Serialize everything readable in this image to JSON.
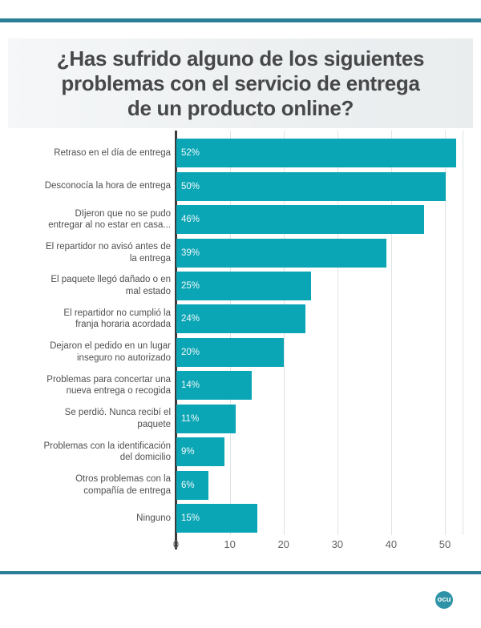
{
  "header": {
    "title_lines": [
      "¿Has sufrido alguno de los siguientes",
      "problemas con el servicio de entrega",
      "de un producto online?"
    ]
  },
  "chart_data": {
    "type": "bar",
    "orientation": "horizontal",
    "title": "¿Has sufrido alguno de los siguientes problemas con el servicio de entrega de un producto online?",
    "categories": [
      "Retraso en el día de entrega",
      "Desconocía la hora de entrega",
      "DIjeron que no se pudo\nentregar al no estar en casa...",
      "El repartidor no avisó antes de\nla entrega",
      "El paquete llegó dañado o en\nmal estado",
      "El repartidor no cumplió la\nfranja horaria acordada",
      "Dejaron el pedido en un lugar\ninseguro no autorizado",
      "Problemas para concertar una\nnueva entrega o recogida",
      "Se perdió. Nunca recibí el\npaquete",
      "Problemas con la identificación\ndel domicilio",
      "Otros problemas con la\ncompañía de entrega",
      "Ninguno"
    ],
    "values": [
      52,
      50,
      46,
      39,
      25,
      24,
      20,
      14,
      11,
      9,
      6,
      15
    ],
    "value_labels": [
      "52%",
      "50%",
      "46%",
      "39%",
      "25%",
      "24%",
      "20%",
      "14%",
      "11%",
      "9%",
      "6%",
      "15%"
    ],
    "unit": "%",
    "xticks": [
      0,
      10,
      20,
      30,
      40,
      50
    ],
    "xlim": [
      0,
      53.2
    ],
    "grid": true,
    "legend": false
  },
  "footer": {
    "logo_text": "ocu"
  },
  "colors": {
    "bar_teal": "#0ba6b5",
    "rule_teal": "#2a7f96",
    "logo_bg": "#2e93a6",
    "title_text": "#47484a",
    "label_text": "#4f4f51",
    "value_text": "#f2fafb",
    "tick_text": "#636363",
    "grid": "#dfe3e4",
    "axis": "#3d3d3f"
  }
}
